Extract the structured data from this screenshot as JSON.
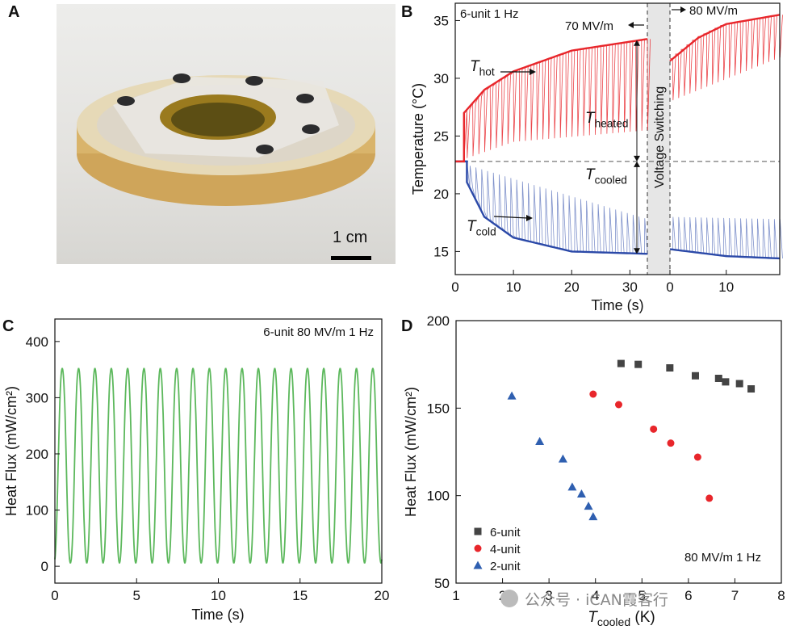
{
  "panels": {
    "a": "A",
    "b": "B",
    "c": "C",
    "d": "D"
  },
  "photo": {
    "scale_bar_label": "1 cm"
  },
  "chart_data": [
    {
      "id": "B",
      "type": "line",
      "title": "6-unit 1 Hz",
      "xlabel": "Time (s)",
      "ylabel": "Temperature (°C)",
      "xticks_left": [
        "0",
        "10",
        "20",
        "30"
      ],
      "xticks_right": [
        "0",
        "10"
      ],
      "yticks": [
        "15",
        "20",
        "25",
        "30",
        "35"
      ],
      "ylim": [
        13,
        36.5
      ],
      "xlim_left": [
        0,
        33
      ],
      "xlim_right": [
        0,
        19.5
      ],
      "switch_label": "Voltage Switching",
      "field_left": "70 MV/m",
      "field_right": "80 MV/m",
      "reference_temperature": 22.8,
      "labels": {
        "hot": "T",
        "hot_sub": "hot",
        "cold": "T",
        "cold_sub": "cold",
        "heated": "T",
        "heated_sub": "heated",
        "cooled": "T",
        "cooled_sub": "cooled"
      },
      "series": [
        {
          "name": "Thot",
          "color": "#e8262b",
          "start": 22.8,
          "onset": 1.5,
          "left_envelope": [
            [
              1.5,
              27
            ],
            [
              5,
              29
            ],
            [
              10,
              30.6
            ],
            [
              20,
              32.4
            ],
            [
              33,
              33.4
            ]
          ],
          "left_cycle_min": [
            [
              1.5,
              23
            ],
            [
              10,
              24.5
            ],
            [
              33,
              25.5
            ]
          ],
          "right_envelope": [
            [
              0,
              31.5
            ],
            [
              5,
              33.5
            ],
            [
              10,
              34.7
            ],
            [
              19.5,
              35.5
            ]
          ],
          "right_cycle_min": [
            [
              0,
              28
            ],
            [
              19.5,
              31.8
            ]
          ]
        },
        {
          "name": "Tcold",
          "color": "#2b49a8",
          "start": 22.8,
          "onset": 2,
          "left_envelope": [
            [
              2,
              21
            ],
            [
              5,
              18
            ],
            [
              10,
              16.2
            ],
            [
              20,
              15
            ],
            [
              33,
              14.8
            ]
          ],
          "left_cycle_max": [
            [
              2,
              22.5
            ],
            [
              33,
              17.8
            ]
          ],
          "right_envelope": [
            [
              0,
              15.2
            ],
            [
              10,
              14.6
            ],
            [
              19.5,
              14.4
            ]
          ],
          "right_cycle_max": [
            [
              0,
              18
            ],
            [
              19.5,
              17.8
            ]
          ]
        }
      ]
    },
    {
      "id": "C",
      "type": "line",
      "title": "6-unit 80 MV/m 1 Hz",
      "xlabel": "Time (s)",
      "ylabel": "Heat Flux (mW/cm²)",
      "xticks": [
        "0",
        "5",
        "10",
        "15",
        "20"
      ],
      "yticks": [
        "0",
        "100",
        "200",
        "300",
        "400"
      ],
      "xlim": [
        0,
        20
      ],
      "ylim": [
        -30,
        440
      ],
      "series": [
        {
          "name": "heat flux",
          "color": "#5cb85c",
          "frequency_hz": 1,
          "peak": 358,
          "trough": 0
        }
      ]
    },
    {
      "id": "D",
      "type": "scatter",
      "annotation": "80 MV/m 1 Hz",
      "xlabel": "T",
      "xlabel_sub": "cooled",
      "xlabel_unit": "(K)",
      "ylabel": "Heat Flux (mW/cm²)",
      "xticks": [
        "1",
        "2",
        "3",
        "4",
        "5",
        "6",
        "7",
        "8"
      ],
      "yticks": [
        "50",
        "100",
        "150",
        "200"
      ],
      "xlim": [
        1,
        8
      ],
      "ylim": [
        50,
        200
      ],
      "series": [
        {
          "name": "6-unit",
          "color": "#444444",
          "marker": "square",
          "points": [
            [
              4.55,
              175.5
            ],
            [
              4.92,
              175
            ],
            [
              5.6,
              173
            ],
            [
              6.15,
              168.5
            ],
            [
              6.65,
              167
            ],
            [
              6.8,
              165
            ],
            [
              7.1,
              164
            ],
            [
              7.35,
              161
            ]
          ]
        },
        {
          "name": "4-unit",
          "color": "#e8262b",
          "marker": "circle",
          "points": [
            [
              3.95,
              158
            ],
            [
              4.5,
              152
            ],
            [
              5.25,
              138
            ],
            [
              5.62,
              130
            ],
            [
              6.2,
              122
            ],
            [
              6.45,
              98.5
            ]
          ]
        },
        {
          "name": "2-unit",
          "color": "#2f5fb0",
          "marker": "triangle",
          "points": [
            [
              2.2,
              157
            ],
            [
              2.8,
              131
            ],
            [
              3.3,
              121
            ],
            [
              3.5,
              105
            ],
            [
              3.7,
              101
            ],
            [
              3.85,
              94
            ],
            [
              3.95,
              88
            ]
          ]
        }
      ]
    }
  ],
  "watermark": "公众号 · iCAN霞客行"
}
